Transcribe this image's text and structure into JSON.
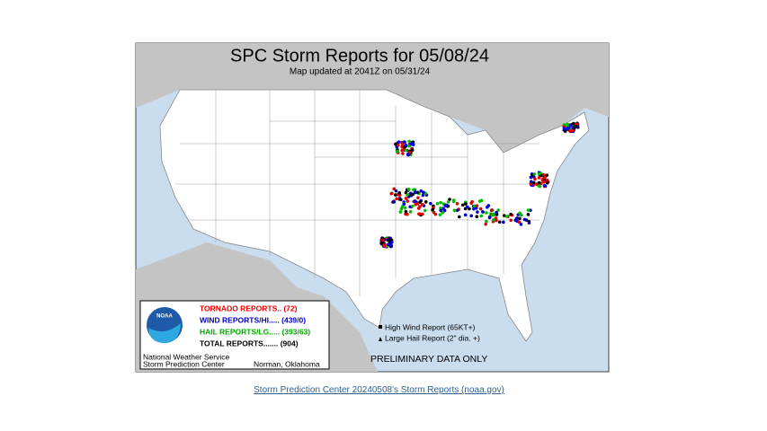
{
  "map": {
    "title": "SPC Storm Reports for 05/08/24",
    "subtitle": "Map updated at 2041Z on 05/31/24",
    "legend": {
      "logo": "NOAA",
      "entries": [
        "TORNADO REPORTS.. (72)",
        "WIND REPORTS/HI..... (439/0)",
        "HAIL REPORTS/LG..... (393/63)",
        "TOTAL REPORTS....... (904)"
      ],
      "agency": "National Weather Service",
      "center": "Storm Prediction Center",
      "location": "Norman, Oklahoma"
    },
    "key": [
      "High Wind Report (65KT+)",
      "Large Hail Report (2\" dia. +)"
    ],
    "notice": "PRELIMINARY DATA ONLY"
  },
  "caption": "Storm Prediction Center 20240508's Storm Reports (noaa.gov)"
}
